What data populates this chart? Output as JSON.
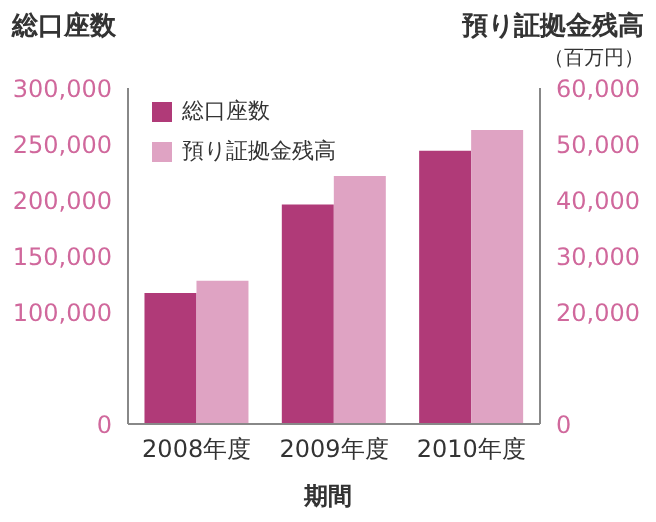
{
  "chart_data": {
    "type": "bar",
    "title": "総口座数",
    "y2label": "預り証拠金残高",
    "subtitle": "（百万円）",
    "xlabel": "期間",
    "categories": [
      "2008年度",
      "2009年度",
      "2010年度"
    ],
    "series": [
      {
        "name": "総口座数",
        "color": "#b03a78",
        "values": [
          117000,
          196000,
          244000
        ]
      },
      {
        "name": "預り証拠金残高",
        "color": "#dfa3c3",
        "values": [
          25600,
          44300,
          52500
        ],
        "axis": "y2"
      }
    ],
    "ylim": [
      0,
      300000
    ],
    "yticks": [
      0,
      {
        "value": 100000,
        "label": "100,000"
      },
      {
        "value": 150000,
        "label": "150,000"
      },
      {
        "value": 200000,
        "label": "200,000"
      },
      {
        "value": 250000,
        "label": "250,000"
      },
      {
        "value": 300000,
        "label": "300,000"
      }
    ],
    "y2lim": [
      0,
      60000
    ],
    "y2ticks": [
      0,
      {
        "value": 20000,
        "label": "20,000"
      },
      {
        "value": 30000,
        "label": "30,000"
      },
      {
        "value": 40000,
        "label": "40,000"
      },
      {
        "value": 50000,
        "label": "50,000"
      },
      {
        "value": 60000,
        "label": "60,000"
      }
    ],
    "legend": "top left",
    "grid": false
  }
}
